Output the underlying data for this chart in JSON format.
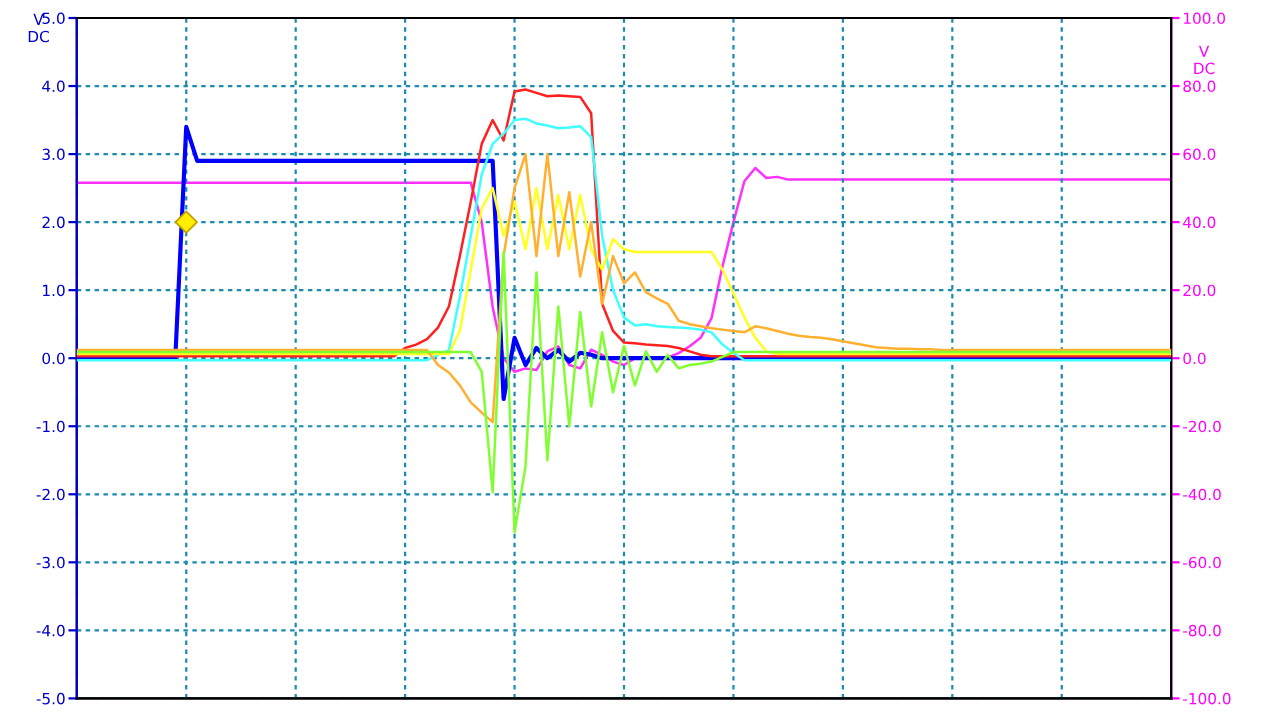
{
  "chart_data": {
    "type": "line",
    "ylabel": "V\nDC",
    "y2label": "V\nDC",
    "categories": [
      null,
      null,
      null,
      null,
      null,
      null,
      null,
      null,
      null,
      null,
      null,
      null,
      null,
      null,
      null,
      null,
      null,
      null,
      null,
      null,
      null,
      null,
      null,
      null,
      null,
      null,
      null,
      null,
      null,
      null,
      null,
      null,
      null,
      null,
      null,
      null,
      null,
      null,
      null,
      null,
      null,
      null,
      null,
      null,
      null,
      null,
      null,
      null,
      null,
      null,
      null,
      null,
      null,
      null,
      null,
      null,
      null,
      null,
      null,
      null,
      null,
      null,
      null,
      null,
      null,
      null,
      null,
      null,
      null,
      null,
      null,
      null,
      null,
      null,
      null,
      null,
      null,
      null,
      null,
      null,
      null,
      null,
      null,
      null,
      null,
      null,
      null,
      null,
      null,
      null,
      null,
      null,
      null,
      null,
      null,
      null,
      null,
      null,
      null,
      null,
      null
    ],
    "ylim": [
      -5,
      5
    ],
    "yticks": [
      {
        "value": -5,
        "label": "-5.0"
      },
      {
        "value": -4,
        "label": "-4.0"
      },
      {
        "value": -3,
        "label": "-3.0"
      },
      {
        "value": -2,
        "label": "-2.0"
      },
      {
        "value": -1,
        "label": "-1.0"
      },
      {
        "value": 0,
        "label": "0.0"
      },
      {
        "value": 1,
        "label": "1.0"
      },
      {
        "value": 2,
        "label": "2.0"
      },
      {
        "value": 3,
        "label": "3.0"
      },
      {
        "value": 4,
        "label": "4.0"
      },
      {
        "value": 5,
        "label": "5.0"
      }
    ],
    "y2lim": [
      -100,
      100
    ],
    "y2ticks": [
      {
        "value": -100,
        "label": "-100.0"
      },
      {
        "value": -80,
        "label": "-80.0"
      },
      {
        "value": -60,
        "label": "-60.0"
      },
      {
        "value": -40,
        "label": "-40.0"
      },
      {
        "value": -20,
        "label": "-20.0"
      },
      {
        "value": 0,
        "label": "0.0"
      },
      {
        "value": 20,
        "label": "20.0"
      },
      {
        "value": 40,
        "label": "40.0"
      },
      {
        "value": 60,
        "label": "60.0"
      },
      {
        "value": 80,
        "label": "80.0"
      },
      {
        "value": 100,
        "label": "100.0"
      }
    ],
    "grid": true,
    "line_style": "solid",
    "series": [
      {
        "color": "#ff2020",
        "values": [
          0.03,
          0.03,
          0.03,
          0.03,
          0.03,
          0.03,
          0.03,
          0.03,
          0.03,
          0.03,
          0.03,
          0.03,
          0.03,
          0.03,
          0.03,
          0.03,
          0.03,
          0.03,
          0.03,
          0.03,
          0.03,
          0.03,
          0.03,
          0.03,
          0.03,
          0.03,
          0.03,
          0.03,
          0.03,
          0.03,
          0.15,
          0.2,
          0.28,
          0.45,
          0.76,
          1.5,
          2.3,
          3.15,
          3.5,
          3.2,
          3.92,
          3.95,
          3.9,
          3.85,
          3.86,
          3.85,
          3.84,
          3.6,
          0.8,
          0.4,
          0.23,
          0.22,
          0.2,
          0.19,
          0.18,
          0.15,
          0.1,
          0.05,
          0.03,
          0.03,
          0.03,
          0.03,
          0.03,
          0.03,
          0.03,
          0.03,
          0.03,
          0.03,
          0.03,
          0.03,
          0.03,
          0.03,
          0.03,
          0.03,
          0.03,
          0.03,
          0.03,
          0.03,
          0.03,
          0.03,
          0.03,
          0.03,
          0.03,
          0.03,
          0.03,
          0.03,
          0.03,
          0.03,
          0.03,
          0.03,
          0.03,
          0.03,
          0.03,
          0.03,
          0.03,
          0.03,
          0.03,
          0.03,
          0.03,
          0.03,
          0.03
        ]
      },
      {
        "color": "#40ffff",
        "values": [
          -0.03,
          -0.03,
          -0.03,
          -0.03,
          -0.03,
          -0.03,
          -0.03,
          -0.03,
          -0.03,
          -0.03,
          -0.03,
          -0.03,
          -0.03,
          -0.03,
          -0.03,
          -0.03,
          -0.03,
          -0.03,
          -0.03,
          -0.03,
          -0.03,
          -0.03,
          -0.03,
          -0.03,
          -0.03,
          -0.03,
          -0.03,
          -0.03,
          -0.03,
          -0.03,
          -0.03,
          -0.03,
          -0.03,
          0.05,
          0.12,
          0.9,
          1.8,
          2.7,
          3.15,
          3.3,
          3.5,
          3.52,
          3.45,
          3.42,
          3.38,
          3.39,
          3.41,
          3.25,
          1.8,
          1.0,
          0.6,
          0.48,
          0.5,
          0.47,
          0.46,
          0.45,
          0.44,
          0.42,
          0.38,
          0.2,
          0.08,
          -0.03,
          -0.03,
          -0.03,
          -0.03,
          -0.03,
          -0.03,
          -0.03,
          -0.03,
          -0.03,
          -0.03,
          -0.03,
          -0.03,
          -0.03,
          -0.03,
          -0.03,
          -0.03,
          -0.03,
          -0.03,
          -0.03,
          -0.03,
          -0.03,
          -0.03,
          -0.03,
          -0.03,
          -0.03,
          -0.03,
          -0.03,
          -0.03,
          -0.03,
          -0.03,
          -0.03,
          -0.03,
          -0.03,
          -0.03,
          -0.03,
          -0.03,
          -0.03,
          -0.03,
          -0.03,
          -0.03
        ]
      },
      {
        "color": "#ffff20",
        "values": [
          0.06,
          0.06,
          0.06,
          0.06,
          0.06,
          0.06,
          0.06,
          0.06,
          0.06,
          0.06,
          0.06,
          0.06,
          0.06,
          0.06,
          0.06,
          0.06,
          0.06,
          0.06,
          0.06,
          0.06,
          0.06,
          0.06,
          0.06,
          0.06,
          0.06,
          0.06,
          0.06,
          0.06,
          0.06,
          0.06,
          0.06,
          0.06,
          0.06,
          0.06,
          0.06,
          0.4,
          1.3,
          2.2,
          2.5,
          1.8,
          2.3,
          1.6,
          2.5,
          1.6,
          2.4,
          1.6,
          2.4,
          1.6,
          1.3,
          1.75,
          1.6,
          1.56,
          1.56,
          1.56,
          1.56,
          1.56,
          1.56,
          1.56,
          1.56,
          1.3,
          0.95,
          0.6,
          0.3,
          0.1,
          0.06,
          0.06,
          0.06,
          0.06,
          0.06,
          0.06,
          0.06,
          0.06,
          0.06,
          0.06,
          0.06,
          0.06,
          0.06,
          0.06,
          0.06,
          0.06,
          0.06,
          0.06,
          0.06,
          0.06,
          0.06,
          0.06,
          0.06,
          0.06,
          0.06,
          0.06,
          0.06,
          0.06,
          0.06,
          0.06,
          0.06,
          0.06,
          0.06,
          0.06,
          0.06,
          0.06,
          0.06
        ]
      },
      {
        "color": "#ffb030",
        "values": [
          0.12,
          0.12,
          0.12,
          0.12,
          0.12,
          0.12,
          0.12,
          0.12,
          0.12,
          0.12,
          0.12,
          0.12,
          0.12,
          0.12,
          0.12,
          0.12,
          0.12,
          0.12,
          0.12,
          0.12,
          0.12,
          0.12,
          0.12,
          0.12,
          0.12,
          0.12,
          0.12,
          0.12,
          0.12,
          0.12,
          0.12,
          0.12,
          0.12,
          -0.1,
          -0.21,
          -0.4,
          -0.65,
          -0.8,
          -0.94,
          1.5,
          2.5,
          3.0,
          1.5,
          3.0,
          1.5,
          2.44,
          1.2,
          2.0,
          0.8,
          1.5,
          1.1,
          1.26,
          0.97,
          0.88,
          0.8,
          0.55,
          0.5,
          0.47,
          0.44,
          0.42,
          0.4,
          0.38,
          0.47,
          0.44,
          0.4,
          0.36,
          0.33,
          0.31,
          0.3,
          0.28,
          0.25,
          0.22,
          0.19,
          0.16,
          0.15,
          0.14,
          0.14,
          0.13,
          0.13,
          0.12,
          0.12,
          0.12,
          0.12,
          0.12,
          0.12,
          0.12,
          0.12,
          0.12,
          0.12,
          0.12,
          0.12,
          0.12,
          0.12,
          0.12,
          0.12,
          0.12,
          0.12,
          0.12,
          0.12,
          0.12,
          0.12
        ]
      },
      {
        "color": "#80ff30",
        "values": [
          0.09,
          0.09,
          0.09,
          0.09,
          0.09,
          0.09,
          0.09,
          0.09,
          0.09,
          0.09,
          0.09,
          0.09,
          0.09,
          0.09,
          0.09,
          0.09,
          0.09,
          0.09,
          0.09,
          0.09,
          0.09,
          0.09,
          0.09,
          0.09,
          0.09,
          0.09,
          0.09,
          0.09,
          0.09,
          0.09,
          0.09,
          0.09,
          0.09,
          0.09,
          0.09,
          0.09,
          0.09,
          -0.2,
          -1.97,
          1.56,
          -2.56,
          -1.59,
          1.26,
          -1.5,
          0.76,
          -1.0,
          0.68,
          -0.71,
          0.38,
          -0.5,
          0.18,
          -0.4,
          0.1,
          -0.2,
          0.05,
          -0.15,
          -0.1,
          -0.08,
          -0.05,
          0.02,
          0.09,
          0.09,
          0.09,
          0.09,
          0.09,
          0.09,
          0.09,
          0.09,
          0.09,
          0.09,
          0.09,
          0.09,
          0.09,
          0.09,
          0.09,
          0.09,
          0.09,
          0.09,
          0.09,
          0.09,
          0.09,
          0.09,
          0.09,
          0.09,
          0.09,
          0.09,
          0.09,
          0.09,
          0.09,
          0.09,
          0.09,
          0.09,
          0.09,
          0.09,
          0.09,
          0.09,
          0.09,
          0.09,
          0.09,
          0.09,
          0.09
        ]
      },
      {
        "color": "#0000ff",
        "values": [
          0,
          0,
          0,
          0,
          0,
          0,
          0,
          0,
          0,
          0,
          3.4,
          2.9,
          2.9,
          2.9,
          2.9,
          2.9,
          2.9,
          2.9,
          2.9,
          2.9,
          2.9,
          2.9,
          2.9,
          2.9,
          2.9,
          2.9,
          2.9,
          2.9,
          2.9,
          2.9,
          2.9,
          2.9,
          2.9,
          2.9,
          2.9,
          2.9,
          2.9,
          2.9,
          2.9,
          -0.6,
          0.3,
          -0.1,
          0.15,
          0,
          0.12,
          -0.05,
          0.08,
          0.05,
          0,
          0,
          0,
          0,
          0,
          0,
          0,
          0,
          0,
          0,
          0,
          0,
          0,
          0,
          0,
          0,
          0,
          0,
          0,
          0,
          0,
          0,
          0,
          0,
          0,
          0,
          0,
          0,
          0,
          0,
          0,
          0,
          0,
          0,
          0,
          0,
          0,
          0,
          0,
          0,
          0,
          0,
          0,
          0,
          0,
          0,
          0,
          0,
          0,
          0,
          0,
          0,
          0
        ]
      },
      {
        "color": "#ff30ff",
        "axis": "y2",
        "values": [
          51.6,
          51.6,
          51.6,
          51.6,
          51.6,
          51.6,
          51.6,
          51.6,
          51.6,
          51.6,
          51.6,
          51.6,
          51.6,
          51.6,
          51.6,
          51.6,
          51.6,
          51.6,
          51.6,
          51.6,
          51.6,
          51.6,
          51.6,
          51.6,
          51.6,
          51.6,
          51.6,
          51.6,
          51.6,
          51.6,
          51.6,
          51.6,
          51.6,
          51.6,
          51.6,
          51.6,
          51.6,
          40,
          15,
          0,
          -4,
          -3,
          -3.5,
          2,
          3.5,
          -2,
          -3,
          2.5,
          1,
          -1,
          -2,
          0,
          0,
          0,
          0.2,
          1.5,
          3.5,
          6,
          11.8,
          27,
          40,
          52,
          55.9,
          53,
          53.3,
          52.5,
          52.5,
          52.5,
          52.5,
          52.5,
          52.5,
          52.5,
          52.5,
          52.5,
          52.5,
          52.5,
          52.5,
          52.5,
          52.5,
          52.5,
          52.5,
          52.5,
          52.5,
          52.5,
          52.5,
          52.5,
          52.5,
          52.5,
          52.5,
          52.5,
          52.5,
          52.5,
          52.5,
          52.5,
          52.5,
          52.5,
          52.5,
          52.5,
          52.5,
          52.5,
          52.5
        ]
      }
    ]
  }
}
